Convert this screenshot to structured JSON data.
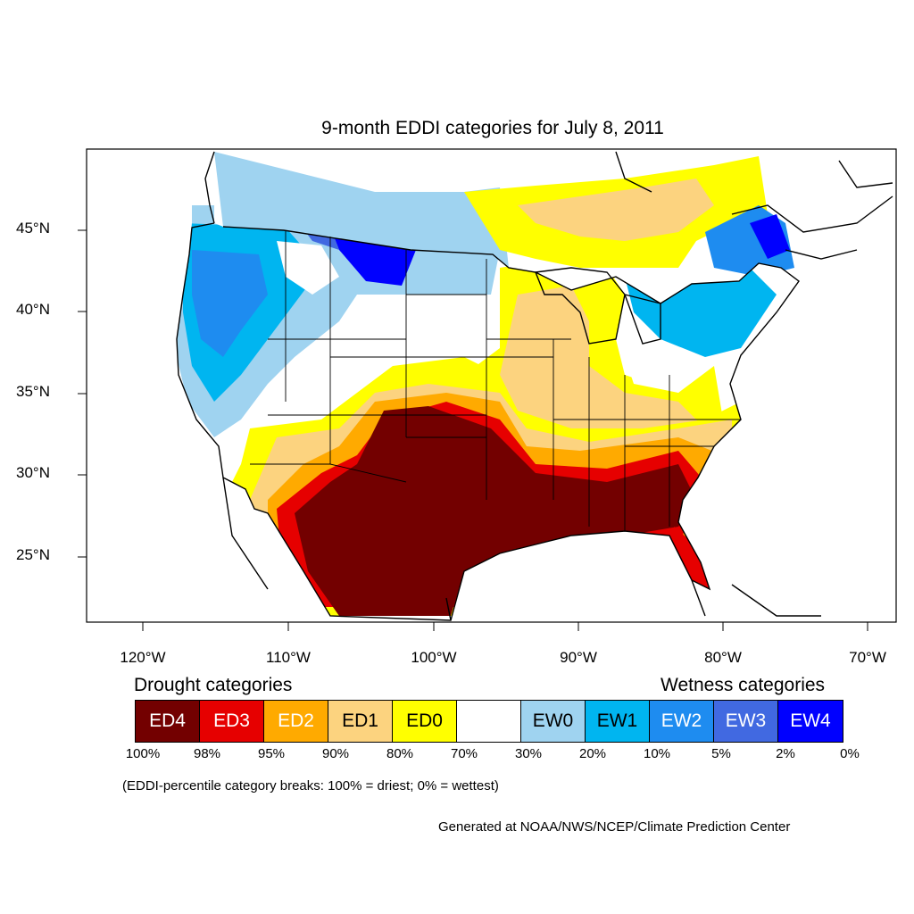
{
  "title": "9-month EDDI categories for July 8, 2011",
  "lat_labels": [
    "45°N",
    "40°N",
    "35°N",
    "30°N",
    "25°N"
  ],
  "lon_labels": [
    "120°W",
    "110°W",
    "100°W",
    "90°W",
    "80°W",
    "70°W"
  ],
  "drought_title": "Drought categories",
  "wetness_title": "Wetness categories",
  "legend": [
    {
      "label": "ED4",
      "color": "#730000",
      "text_color": "#ffffff"
    },
    {
      "label": "ED3",
      "color": "#e60000",
      "text_color": "#ffffff"
    },
    {
      "label": "ED2",
      "color": "#ffaa00",
      "text_color": "#ffffff"
    },
    {
      "label": "ED1",
      "color": "#fcd37f",
      "text_color": "#000000"
    },
    {
      "label": "ED0",
      "color": "#ffff00",
      "text_color": "#000000"
    },
    {
      "label": "",
      "color": "#ffffff",
      "text_color": "#000000"
    },
    {
      "label": "EW0",
      "color": "#9fd3f0",
      "text_color": "#000000"
    },
    {
      "label": "EW1",
      "color": "#00b5f0",
      "text_color": "#000000"
    },
    {
      "label": "EW2",
      "color": "#1e8cf0",
      "text_color": "#ffffff"
    },
    {
      "label": "EW3",
      "color": "#4169e1",
      "text_color": "#ffffff"
    },
    {
      "label": "EW4",
      "color": "#0000ff",
      "text_color": "#ffffff"
    }
  ],
  "percent_labels": [
    "100%",
    "98%",
    "95%",
    "90%",
    "80%",
    "70%",
    "30%",
    "20%",
    "10%",
    "5%",
    "2%",
    "0%"
  ],
  "note": "(EDDI-percentile category breaks: 100% = driest; 0% = wettest)",
  "credit": "Generated at NOAA/NWS/NCEP/Climate Prediction Center"
}
